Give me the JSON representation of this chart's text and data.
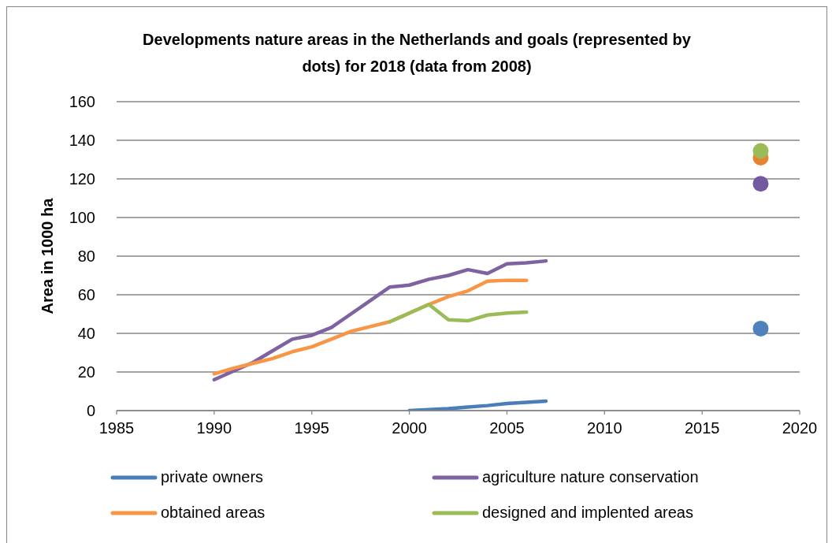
{
  "chart_data": {
    "type": "line",
    "title": "Developments nature areas in the Netherlands and goals (represented by dots) for 2018 (data from 2008)",
    "ylabel": "Area in 1000 ha",
    "xlim": [
      1985,
      2020
    ],
    "xticks": [
      1985,
      1990,
      1995,
      2000,
      2005,
      2010,
      2015,
      2020
    ],
    "ylim": [
      0,
      160
    ],
    "yticks": [
      0,
      20,
      40,
      60,
      80,
      100,
      120,
      140,
      160
    ],
    "grid": "y",
    "legend": "bottom",
    "series": [
      {
        "name": "private owners",
        "color": "#4a7ebb",
        "x": [
          2000,
          2001,
          2002,
          2003,
          2004,
          2005,
          2006,
          2007
        ],
        "values": [
          0,
          0.5,
          1,
          1.8,
          2.6,
          3.7,
          4.3,
          4.9
        ]
      },
      {
        "name": "agriculture nature conservation",
        "color": "#7f63a1",
        "x": [
          1990,
          1991,
          1992,
          1993,
          1994,
          1995,
          1996,
          1997,
          1998,
          1999,
          2000,
          2001,
          2002,
          2003,
          2004,
          2005,
          2006,
          2007
        ],
        "values": [
          16,
          20.5,
          25,
          31,
          37,
          39,
          43,
          50,
          57,
          64,
          65,
          68,
          70,
          73,
          71,
          76,
          76.5,
          77.5
        ]
      },
      {
        "name": "obtained areas",
        "color": "#f79646",
        "x": [
          1990,
          1991,
          1992,
          1993,
          1994,
          1995,
          1996,
          1997,
          1998,
          1999,
          2000,
          2001,
          2002,
          2003,
          2004,
          2005,
          2006
        ],
        "values": [
          19,
          22,
          24.5,
          27,
          30.5,
          33,
          37,
          41,
          43.5,
          46,
          50.5,
          55,
          59,
          62,
          67,
          67.5,
          67.5
        ]
      },
      {
        "name": "designed and implented areas",
        "color": "#9bbb59",
        "x": [
          1999,
          2000,
          2001,
          2002,
          2003,
          2004,
          2005,
          2006
        ],
        "values": [
          46,
          50.5,
          55,
          47,
          46.5,
          49.5,
          50.5,
          51
        ]
      },
      {
        "type": "scatter",
        "color": "#4f81bd",
        "x": [
          2018
        ],
        "values": [
          42.5
        ],
        "marker": "circle"
      },
      {
        "type": "scatter",
        "color": "#7359a0",
        "x": [
          2018
        ],
        "values": [
          117.5
        ],
        "marker": "circle"
      },
      {
        "type": "scatter",
        "color": "#e8822e",
        "x": [
          2018
        ],
        "values": [
          131
        ],
        "marker": "circle"
      },
      {
        "type": "scatter",
        "color": "#9bbb59",
        "x": [
          2018
        ],
        "values": [
          134.5
        ],
        "marker": "circle"
      }
    ]
  }
}
